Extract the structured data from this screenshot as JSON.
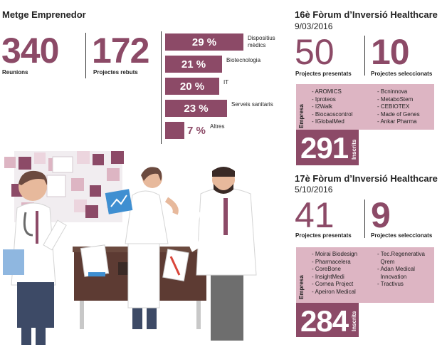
{
  "metge": {
    "title": "Metge Emprenedor",
    "reunions_value": "340",
    "reunions_label": "Reunions",
    "projectes_value": "172",
    "projectes_label": "Projectes rebuts"
  },
  "chart_data": {
    "type": "bar",
    "orientation": "horizontal",
    "categories": [
      "Dispositius mèdics",
      "Biotecnologia",
      "IT",
      "Serveis sanitaris",
      "Altres"
    ],
    "values": [
      29,
      21,
      20,
      23,
      7
    ],
    "value_labels": [
      "29 %",
      "21 %",
      "20 %",
      "23 %",
      "7 %"
    ],
    "unit": "%",
    "xlim": [
      0,
      29
    ],
    "bar_color": "#8c4a67",
    "title": "",
    "xlabel": "",
    "ylabel": ""
  },
  "forum16": {
    "title": "16è Fòrum d’Inversió Healthcare",
    "date": "9/03/2016",
    "presentats_value": "50",
    "presentats_label": "Projectes presentats",
    "seleccionats_value": "10",
    "seleccionats_label": "Projectes seleccionats",
    "empresa_label": "Empresa",
    "empreses_col1": [
      "- AROMICS",
      "- Iproteos",
      "- I2Walk",
      "- Biocaoscontrol",
      "- IGlobalMed"
    ],
    "empreses_col2": [
      "- Bcninnova",
      "- MetaboStem",
      "- CEBIOTEX",
      "- Made of Genes",
      "- Ankar Pharma"
    ],
    "inscrits_value": "291",
    "inscrits_label": "Inscrits"
  },
  "forum17": {
    "title": "17è Fòrum d’Inversió Healthcare",
    "date": "5/10/2016",
    "presentats_value": "41",
    "presentats_label": "Projectes presentats",
    "seleccionats_value": "9",
    "seleccionats_label": "Projectes seleccionats",
    "empresa_label": "Empresa",
    "empreses_col1": [
      "- Moirai Biodesign",
      "- Pharmacelera",
      "- CoreBone",
      "- InsightMedi",
      "- Cornea Project",
      "- Apeiron Medical"
    ],
    "empreses_col2": [
      "- Tec.Regenerativa",
      "  Qrem",
      "- Adan Medical",
      "  Innovation",
      "- Tractivus"
    ],
    "inscrits_value": "284",
    "inscrits_label": "Inscrits"
  },
  "colors": {
    "accent": "#8c4a67",
    "pink": "#ddb5c3",
    "light_pink": "#ecd5de",
    "grey": "#c8c8c8",
    "red": "#d9463a",
    "blue": "#3f8fd1"
  }
}
